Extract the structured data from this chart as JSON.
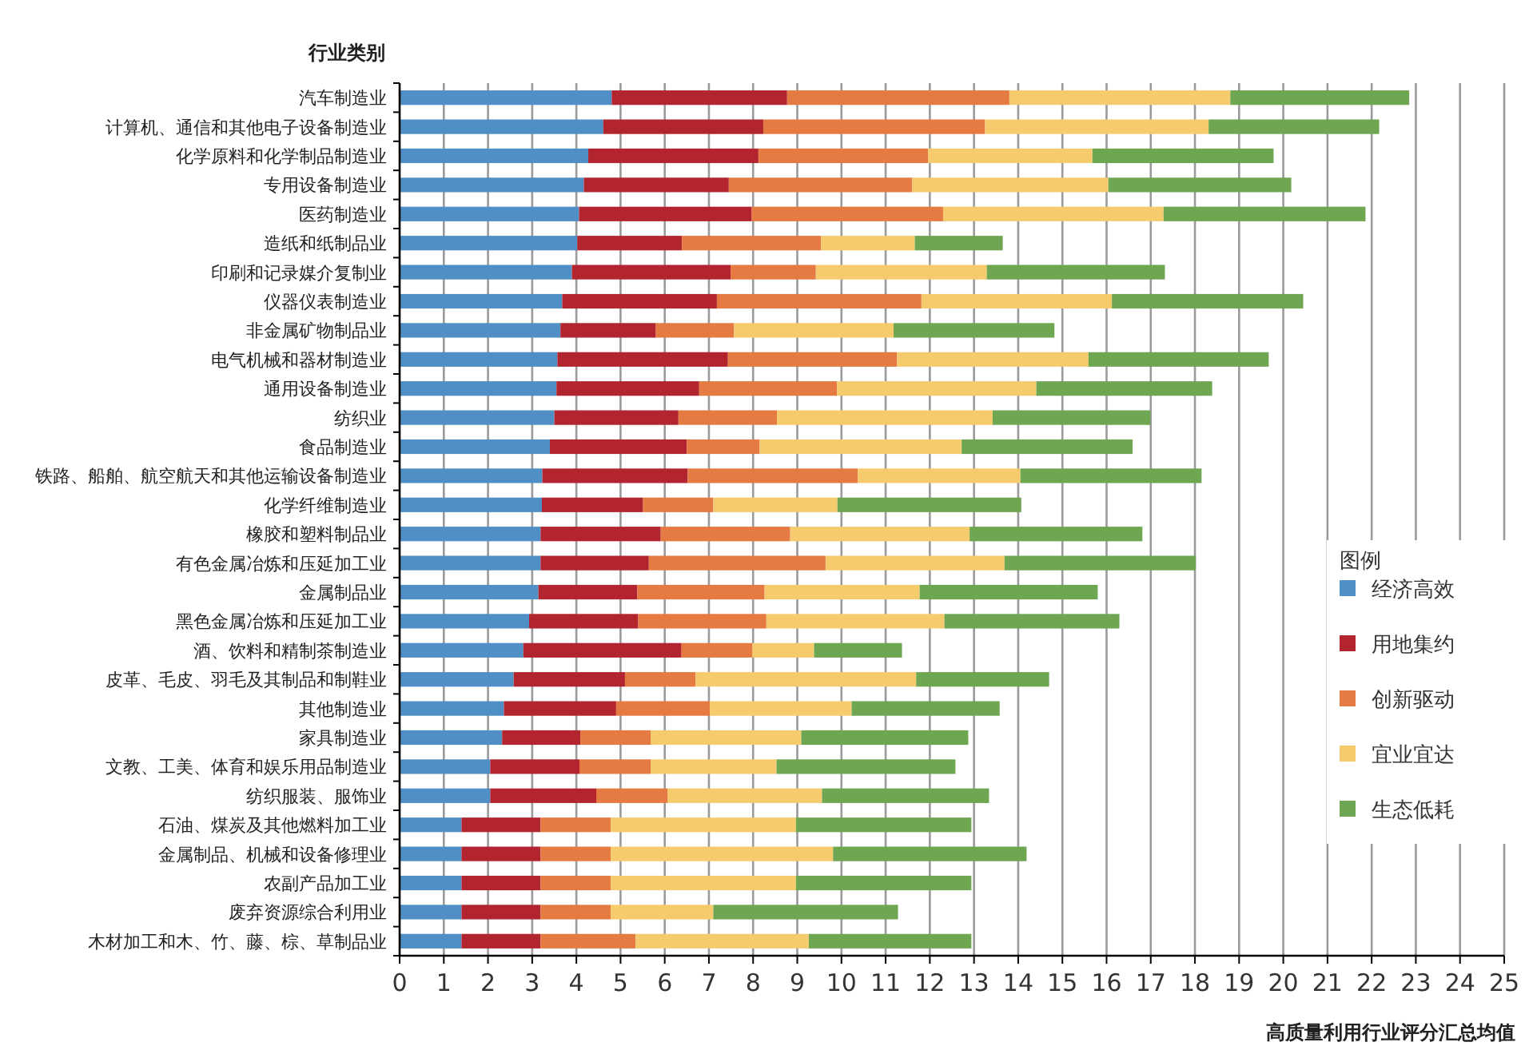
{
  "chart_data": {
    "type": "bar",
    "orientation": "horizontal",
    "stacked": true,
    "ylabel": "行业类别",
    "xlabel": "高质量利用行业评分汇总均值",
    "legend_title": "图例",
    "categories": [
      "汽车制造业",
      "计算机、通信和其他电子设备制造业",
      "化学原料和化学制品制造业",
      "专用设备制造业",
      "医药制造业",
      "造纸和纸制品业",
      "印刷和记录媒介复制业",
      "仪器仪表制造业",
      "非金属矿物制品业",
      "电气机械和器材制造业",
      "通用设备制造业",
      "纺织业",
      "食品制造业",
      "铁路、船舶、航空航天和其他运输设备制造业",
      "化学纤维制造业",
      "橡胶和塑料制品业",
      "有色金属冶炼和压延加工业",
      "金属制品业",
      "黑色金属冶炼和压延加工业",
      "酒、饮料和精制茶制造业",
      "皮革、毛皮、羽毛及其制品和制鞋业",
      "其他制造业",
      "家具制造业",
      "文教、工美、体育和娱乐用品制造业",
      "纺织服装、服饰业",
      "石油、煤炭及其他燃料加工业",
      "金属制品、机械和设备修理业",
      "农副产品加工业",
      "废弃资源综合利用业",
      "木材加工和木、竹、藤、棕、草制品业"
    ],
    "series": [
      {
        "name": "经济高效",
        "color": "#4f8fc6",
        "values": [
          4.8,
          4.61,
          4.27,
          4.17,
          4.06,
          4.02,
          3.9,
          3.68,
          3.64,
          3.57,
          3.55,
          3.5,
          3.4,
          3.23,
          3.22,
          3.19,
          3.19,
          3.14,
          2.93,
          2.8,
          2.58,
          2.36,
          2.32,
          2.05,
          2.05,
          1.4,
          1.4,
          1.4,
          1.4,
          1.4
        ]
      },
      {
        "name": "用地集约",
        "color": "#b2252f",
        "values": [
          3.97,
          3.62,
          3.85,
          3.28,
          3.91,
          2.37,
          3.59,
          3.5,
          2.16,
          3.86,
          3.23,
          2.81,
          3.1,
          3.29,
          2.29,
          2.72,
          2.45,
          2.24,
          2.47,
          3.58,
          2.52,
          2.54,
          1.77,
          2.02,
          2.4,
          1.79,
          1.79,
          1.79,
          1.79,
          1.79
        ]
      },
      {
        "name": "创新驱动",
        "color": "#e57a42",
        "values": [
          5.03,
          5.02,
          3.84,
          4.15,
          4.33,
          3.15,
          1.93,
          4.63,
          1.77,
          3.83,
          3.12,
          2.23,
          1.65,
          3.85,
          1.59,
          2.93,
          4.0,
          2.88,
          2.9,
          1.6,
          1.6,
          2.12,
          1.59,
          1.61,
          1.62,
          1.59,
          1.59,
          1.59,
          1.59,
          2.15
        ]
      },
      {
        "name": "宜业宜达",
        "color": "#f5cb6e",
        "values": [
          5.0,
          5.06,
          3.72,
          4.44,
          4.99,
          2.12,
          3.87,
          4.31,
          3.61,
          4.33,
          4.51,
          4.88,
          4.57,
          3.68,
          2.81,
          4.06,
          4.05,
          3.51,
          4.03,
          1.4,
          4.99,
          3.21,
          3.41,
          2.85,
          3.49,
          4.19,
          5.03,
          4.19,
          2.32,
          3.92
        ]
      },
      {
        "name": "生态低耗",
        "color": "#6fa652",
        "values": [
          4.05,
          3.86,
          4.1,
          4.14,
          4.57,
          1.99,
          4.03,
          4.33,
          3.64,
          4.08,
          3.98,
          3.57,
          3.87,
          4.1,
          4.16,
          3.91,
          4.33,
          4.03,
          3.96,
          1.99,
          3.01,
          3.35,
          3.78,
          4.05,
          3.78,
          3.97,
          4.38,
          3.97,
          4.18,
          3.68
        ]
      }
    ],
    "xlim": [
      0,
      25
    ],
    "xticks": [
      0,
      1,
      2,
      3,
      4,
      5,
      6,
      7,
      8,
      9,
      10,
      11,
      12,
      13,
      14,
      15,
      16,
      17,
      18,
      19,
      20,
      21,
      22,
      23,
      24,
      25
    ],
    "grid": "x",
    "legend": "right"
  }
}
